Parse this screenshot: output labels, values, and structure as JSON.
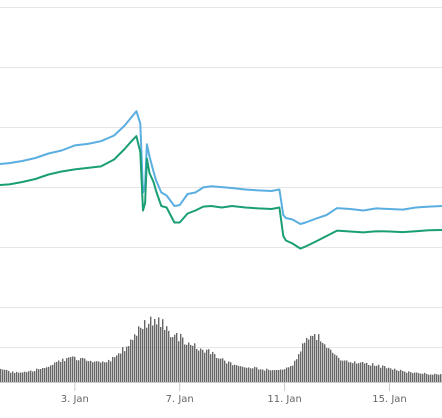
{
  "chart_data": {
    "type": "line",
    "title": "",
    "xlabel": "",
    "ylabel": "",
    "x_tick_labels": [
      "3. Jan",
      "7. Jan",
      "11. Jan",
      "15. Jan"
    ],
    "x_tick_days": [
      3,
      7,
      11,
      15
    ],
    "x_range_days": [
      0.15,
      17.0
    ],
    "grid": true,
    "legend": "none",
    "y_range": [
      0,
      100
    ],
    "series": [
      {
        "color": "#5aaee0",
        "points": [
          [
            0.15,
            48
          ],
          [
            0.5,
            48.3
          ],
          [
            1,
            49
          ],
          [
            1.5,
            50
          ],
          [
            2,
            51.5
          ],
          [
            2.5,
            52.5
          ],
          [
            3,
            54.2
          ],
          [
            3.5,
            54.7
          ],
          [
            4,
            55.6
          ],
          [
            4.5,
            57.5
          ],
          [
            4.9,
            60.8
          ],
          [
            5.15,
            63.5
          ],
          [
            5.35,
            65.6
          ],
          [
            5.5,
            61.5
          ],
          [
            5.6,
            38.5
          ],
          [
            5.68,
            41
          ],
          [
            5.75,
            54.6
          ],
          [
            5.85,
            50.5
          ],
          [
            6,
            45.5
          ],
          [
            6.1,
            42.5
          ],
          [
            6.3,
            38.5
          ],
          [
            6.5,
            37.5
          ],
          [
            6.8,
            34
          ],
          [
            7,
            34.3
          ],
          [
            7.3,
            38
          ],
          [
            7.6,
            38.5
          ],
          [
            7.9,
            40.2
          ],
          [
            8.2,
            40.6
          ],
          [
            8.6,
            40.3
          ],
          [
            9,
            40
          ],
          [
            9.5,
            39.5
          ],
          [
            10,
            39.2
          ],
          [
            10.5,
            39
          ],
          [
            10.8,
            39.5
          ],
          [
            10.95,
            31
          ],
          [
            11.05,
            30
          ],
          [
            11.3,
            29.5
          ],
          [
            11.6,
            28
          ],
          [
            11.8,
            28.5
          ],
          [
            12.2,
            29.8
          ],
          [
            12.6,
            31
          ],
          [
            13,
            33.3
          ],
          [
            13.5,
            33
          ],
          [
            14,
            32.5
          ],
          [
            14.5,
            33.2
          ],
          [
            15,
            33
          ],
          [
            15.5,
            32.8
          ],
          [
            16,
            33.5
          ],
          [
            16.5,
            33.8
          ],
          [
            17,
            34
          ]
        ]
      },
      {
        "color": "#1a9e75",
        "points": [
          [
            0.15,
            41
          ],
          [
            0.5,
            41.2
          ],
          [
            1,
            42
          ],
          [
            1.5,
            43
          ],
          [
            2,
            44.5
          ],
          [
            2.5,
            45.5
          ],
          [
            3,
            46.2
          ],
          [
            3.5,
            46.7
          ],
          [
            4,
            47.2
          ],
          [
            4.5,
            49.5
          ],
          [
            4.9,
            53
          ],
          [
            5.15,
            55.5
          ],
          [
            5.35,
            57.3
          ],
          [
            5.5,
            52
          ],
          [
            5.6,
            32.5
          ],
          [
            5.68,
            35
          ],
          [
            5.75,
            49.8
          ],
          [
            5.85,
            45
          ],
          [
            6,
            42
          ],
          [
            6.1,
            39
          ],
          [
            6.3,
            34
          ],
          [
            6.5,
            33.5
          ],
          [
            6.8,
            28.5
          ],
          [
            7,
            28.5
          ],
          [
            7.3,
            31.5
          ],
          [
            7.6,
            32.5
          ],
          [
            7.9,
            33.8
          ],
          [
            8.2,
            34
          ],
          [
            8.6,
            33.5
          ],
          [
            9,
            34
          ],
          [
            9.5,
            33.5
          ],
          [
            10,
            33.2
          ],
          [
            10.5,
            33
          ],
          [
            10.8,
            33.5
          ],
          [
            10.95,
            24
          ],
          [
            11.05,
            22.5
          ],
          [
            11.3,
            21.5
          ],
          [
            11.6,
            19.8
          ],
          [
            11.8,
            20.5
          ],
          [
            12.2,
            22.2
          ],
          [
            12.6,
            24
          ],
          [
            13,
            25.8
          ],
          [
            13.5,
            25.5
          ],
          [
            14,
            25.2
          ],
          [
            14.5,
            25.6
          ],
          [
            15,
            25.5
          ],
          [
            15.5,
            25.3
          ],
          [
            16,
            25.6
          ],
          [
            16.5,
            25.9
          ],
          [
            17,
            26
          ]
        ]
      }
    ],
    "volume": {
      "type": "bar",
      "color": "#666666",
      "y_range": [
        0,
        100
      ],
      "points": [
        [
          0.15,
          20
        ],
        [
          0.5,
          14
        ],
        [
          0.9,
          12
        ],
        [
          1.3,
          14
        ],
        [
          1.8,
          19
        ],
        [
          2.3,
          27
        ],
        [
          2.8,
          33
        ],
        [
          3.2,
          31
        ],
        [
          3.6,
          27
        ],
        [
          4.0,
          25
        ],
        [
          4.4,
          30
        ],
        [
          4.8,
          42
        ],
        [
          5.2,
          60
        ],
        [
          5.5,
          74
        ],
        [
          5.8,
          80
        ],
        [
          6.1,
          86
        ],
        [
          6.3,
          80
        ],
        [
          6.6,
          68
        ],
        [
          6.9,
          62
        ],
        [
          7.2,
          56
        ],
        [
          7.6,
          47
        ],
        [
          8.0,
          42
        ],
        [
          8.4,
          36
        ],
        [
          8.8,
          27
        ],
        [
          9.2,
          21
        ],
        [
          9.6,
          20
        ],
        [
          10.0,
          18
        ],
        [
          10.4,
          16
        ],
        [
          10.8,
          16
        ],
        [
          11.0,
          18
        ],
        [
          11.3,
          24
        ],
        [
          11.6,
          44
        ],
        [
          11.9,
          60
        ],
        [
          12.1,
          64
        ],
        [
          12.4,
          58
        ],
        [
          12.8,
          38
        ],
        [
          13.2,
          30
        ],
        [
          13.6,
          27
        ],
        [
          14.0,
          27
        ],
        [
          14.4,
          23
        ],
        [
          14.8,
          20
        ],
        [
          15.2,
          17
        ],
        [
          15.6,
          14
        ],
        [
          16.0,
          12
        ],
        [
          16.5,
          11
        ],
        [
          17.0,
          10
        ]
      ]
    }
  }
}
